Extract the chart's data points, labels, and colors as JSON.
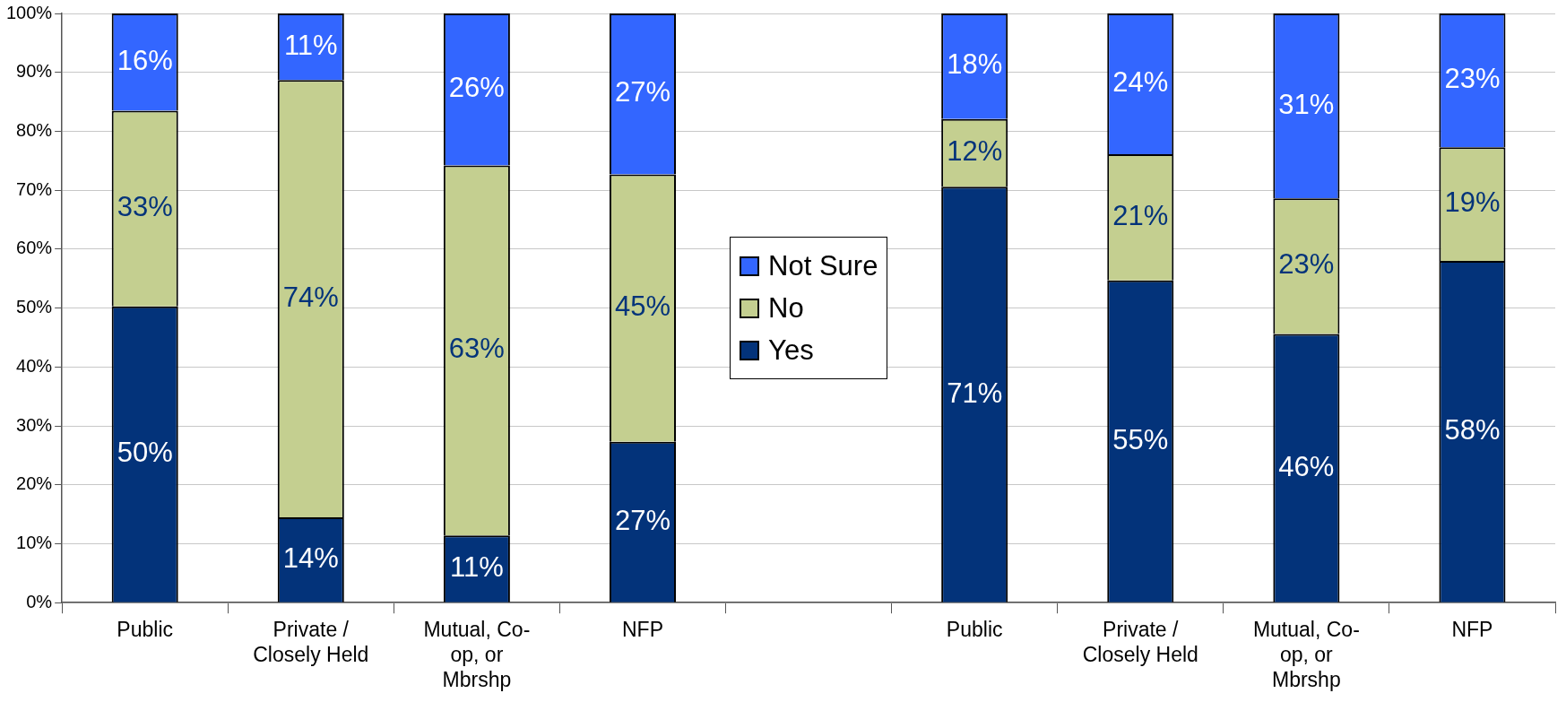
{
  "chart_data": {
    "type": "bar",
    "stacked": true,
    "categories": [
      "Public",
      "Private / Closely Held",
      "Mutual, Co-op, or Mbrshp",
      "NFP",
      null,
      "Public",
      "Private / Closely Held",
      "Mutual, Co-op, or Mbrshp",
      "NFP"
    ],
    "series": [
      {
        "name": "Yes",
        "color": "#03337a",
        "values": [
          50.3,
          14.5,
          11.4,
          27.3,
          null,
          70.6,
          54.7,
          45.6,
          58.0
        ],
        "value_labels": [
          "50%",
          "14%",
          "11%",
          "27%",
          null,
          "71%",
          "55%",
          "46%",
          "58%"
        ]
      },
      {
        "name": "No",
        "color": "#c4cf90",
        "values": [
          33.2,
          74.2,
          62.8,
          45.4,
          null,
          11.5,
          21.4,
          23.0,
          19.3
        ],
        "value_labels": [
          "33%",
          "74%",
          "63%",
          "45%",
          null,
          "12%",
          "21%",
          "23%",
          "19%"
        ]
      },
      {
        "name": "Not Sure",
        "color": "#3366ff",
        "values": [
          16.5,
          11.3,
          25.8,
          27.3,
          null,
          17.9,
          23.9,
          31.4,
          22.7
        ],
        "value_labels": [
          "16%",
          "11%",
          "26%",
          "27%",
          null,
          "18%",
          "24%",
          "31%",
          "23%"
        ]
      }
    ],
    "ylim": [
      0,
      100
    ],
    "yticks": [
      {
        "value": 0,
        "label": "0%"
      },
      {
        "value": 10,
        "label": "10%"
      },
      {
        "value": 20,
        "label": "20%"
      },
      {
        "value": 30,
        "label": "30%"
      },
      {
        "value": 40,
        "label": "40%"
      },
      {
        "value": 50,
        "label": "50%"
      },
      {
        "value": 60,
        "label": "60%"
      },
      {
        "value": 70,
        "label": "70%"
      },
      {
        "value": 80,
        "label": "80%"
      },
      {
        "value": 90,
        "label": "90%"
      },
      {
        "value": 100,
        "label": "100%"
      }
    ],
    "grid": "y",
    "legend": "center"
  }
}
